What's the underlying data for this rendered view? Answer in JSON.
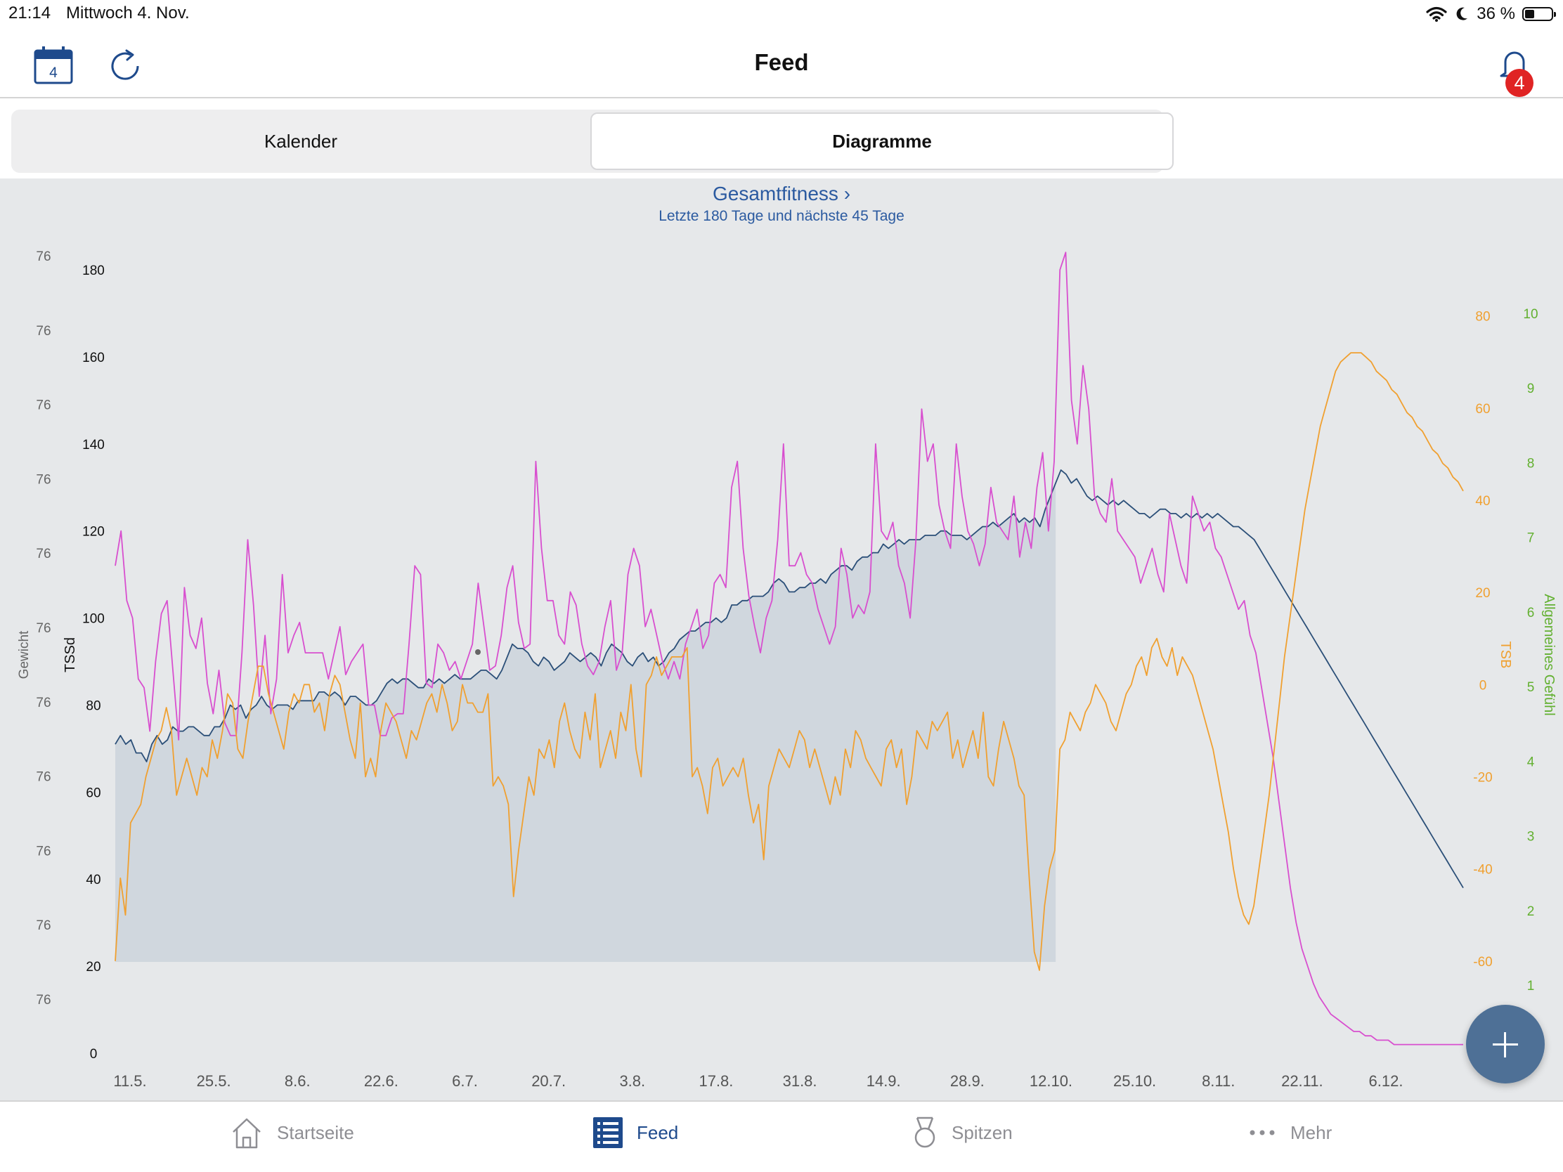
{
  "status_bar": {
    "time": "21:14",
    "date": "Mittwoch 4. Nov.",
    "battery": "36 %",
    "battery_level": 0.36
  },
  "nav": {
    "title": "Feed",
    "calendar_day": "4",
    "notification_count": "4"
  },
  "segments": {
    "left": "Kalender",
    "right": "Diagramme",
    "selected": "right"
  },
  "chart_header": {
    "title": "Gesamtfitness",
    "title_chevron": "›",
    "subtitle": "Letzte 180 Tage und nächste 45 Tage"
  },
  "chart_data": {
    "type": "line",
    "x_tick_labels": [
      "11.5.",
      "25.5.",
      "8.6.",
      "22.6.",
      "6.7.",
      "20.7.",
      "3.8.",
      "17.8.",
      "31.8.",
      "14.9.",
      "28.9.",
      "12.10.",
      "25.10.",
      "8.11.",
      "22.11.",
      "6.12."
    ],
    "axes": {
      "gewicht": {
        "label": "Gewicht",
        "tick_labels": [
          "76",
          "76",
          "76",
          "76",
          "76",
          "76",
          "76",
          "76",
          "76",
          "76",
          "76"
        ]
      },
      "tssd": {
        "label": "TSSd",
        "ticks": [
          0,
          20,
          40,
          60,
          80,
          100,
          120,
          140,
          160,
          180
        ],
        "range": [
          0,
          180
        ]
      },
      "tsb": {
        "label": "TSB",
        "ticks": [
          -60,
          -40,
          -20,
          0,
          20,
          40,
          60,
          80
        ],
        "range": [
          -80,
          90
        ],
        "color": "#f0a030"
      },
      "gefuehl": {
        "label": "Allgemeines Gefühl",
        "ticks": [
          1,
          2,
          3,
          4,
          5,
          6,
          7,
          8,
          9,
          10
        ],
        "color": "#62b030"
      }
    },
    "series": [
      {
        "axis": "tssd",
        "color": "#2b4f78",
        "fill": "#cbd3dc",
        "values": [
          71,
          73,
          71,
          72,
          69,
          69,
          67,
          71,
          73,
          71,
          72,
          75,
          74,
          74,
          75,
          75,
          74,
          73,
          73,
          75,
          75,
          77,
          80,
          79,
          80,
          77,
          79,
          80,
          82,
          80,
          79,
          80,
          80,
          80,
          79,
          81,
          81,
          81,
          81,
          83,
          83,
          82,
          83,
          82,
          80,
          82,
          82,
          81,
          80,
          80,
          81,
          83,
          85,
          86,
          85,
          86,
          86,
          85,
          84,
          84,
          86,
          85,
          86,
          85,
          86,
          87,
          86,
          86,
          86,
          87,
          88,
          88,
          87,
          86,
          88,
          91,
          94,
          93,
          93,
          92,
          90,
          89,
          91,
          90,
          88,
          89,
          90,
          92,
          91,
          90,
          91,
          92,
          91,
          89,
          92,
          94,
          93,
          92,
          90,
          89,
          91,
          92,
          90,
          91,
          89,
          90,
          92,
          93,
          95,
          96,
          97,
          97,
          98,
          99,
          99,
          100,
          99,
          100,
          103,
          103,
          104,
          104,
          105,
          105,
          105,
          106,
          108,
          109,
          108,
          106,
          106,
          107,
          107,
          108,
          108,
          109,
          108,
          110,
          111,
          112,
          112,
          111,
          113,
          114,
          114,
          115,
          115,
          117,
          116,
          117,
          118,
          117,
          118,
          118,
          118,
          119,
          119,
          119,
          120,
          120,
          119,
          119,
          119,
          118,
          119,
          120,
          121,
          121,
          122,
          121,
          122,
          123,
          124,
          122,
          123,
          122,
          123,
          121,
          125,
          128,
          131,
          134,
          133,
          131,
          132,
          130,
          128,
          127,
          128,
          127,
          126,
          127,
          126,
          127,
          126,
          125,
          124,
          124,
          123,
          124,
          125,
          125,
          124,
          124,
          123,
          124,
          123,
          124,
          123,
          124,
          123,
          124,
          123,
          122,
          121,
          121,
          120,
          119,
          118,
          116,
          114,
          112,
          110,
          108,
          106,
          104,
          102,
          100,
          98,
          96,
          94,
          92,
          90,
          88,
          86,
          84,
          82,
          80,
          78,
          76,
          74,
          72,
          70,
          68,
          66,
          64,
          62,
          60,
          58,
          56,
          54,
          52,
          50,
          48,
          46,
          44,
          42,
          40,
          38
        ]
      },
      {
        "axis": "tssd",
        "color": "#d84fcf",
        "values": [
          112,
          120,
          104,
          100,
          86,
          84,
          74,
          90,
          101,
          104,
          88,
          72,
          107,
          96,
          93,
          100,
          85,
          78,
          88,
          76,
          73,
          73,
          92,
          118,
          103,
          82,
          96,
          78,
          86,
          110,
          92,
          96,
          99,
          92,
          92,
          92,
          92,
          86,
          92,
          98,
          87,
          90,
          92,
          94,
          80,
          80,
          73,
          73,
          77,
          78,
          78,
          94,
          112,
          110,
          85,
          84,
          94,
          92,
          88,
          90,
          86,
          90,
          94,
          108,
          98,
          88,
          89,
          96,
          107,
          112,
          99,
          93,
          94,
          136,
          116,
          104,
          104,
          96,
          94,
          106,
          103,
          94,
          89,
          87,
          90,
          98,
          104,
          88,
          92,
          110,
          116,
          112,
          98,
          102,
          96,
          90,
          86,
          90,
          86,
          94,
          98,
          102,
          93,
          96,
          108,
          110,
          107,
          130,
          136,
          116,
          105,
          98,
          92,
          100,
          104,
          118,
          140,
          112,
          112,
          115,
          110,
          108,
          102,
          98,
          94,
          98,
          116,
          110,
          100,
          103,
          101,
          106,
          140,
          120,
          118,
          122,
          112,
          108,
          100,
          118,
          148,
          136,
          140,
          126,
          120,
          116,
          140,
          128,
          120,
          117,
          112,
          117,
          130,
          122,
          120,
          118,
          128,
          114,
          122,
          116,
          130,
          138,
          120,
          136,
          180,
          184,
          150,
          140,
          158,
          148,
          128,
          124,
          122,
          132,
          120,
          118,
          116,
          114,
          108,
          112,
          116,
          110,
          106,
          124,
          118,
          112,
          108,
          128,
          124,
          120,
          122,
          116,
          114,
          110,
          106,
          102,
          104,
          96,
          92,
          84,
          76,
          68,
          58,
          48,
          38,
          30,
          24,
          20,
          16,
          13,
          11,
          9,
          8,
          7,
          6,
          5,
          5,
          4,
          4,
          3,
          3,
          3,
          2,
          2,
          2,
          2,
          2,
          2,
          2,
          2,
          2,
          2,
          2,
          2,
          2
        ]
      },
      {
        "axis": "tsb",
        "color": "#f0a030",
        "values": [
          -60,
          -42,
          -50,
          -30,
          -28,
          -26,
          -20,
          -16,
          -12,
          -10,
          -5,
          -10,
          -24,
          -20,
          -16,
          -20,
          -24,
          -18,
          -20,
          -12,
          -16,
          -10,
          -2,
          -4,
          -14,
          -16,
          -8,
          -2,
          4,
          4,
          -2,
          -6,
          -10,
          -14,
          -6,
          -2,
          -4,
          0,
          0,
          -6,
          -4,
          -10,
          -2,
          2,
          0,
          -6,
          -12,
          -16,
          -4,
          -20,
          -16,
          -20,
          -10,
          -4,
          -6,
          -8,
          -12,
          -16,
          -10,
          -12,
          -8,
          -4,
          -2,
          -6,
          0,
          -4,
          -10,
          -8,
          0,
          -4,
          -4,
          -6,
          -6,
          -2,
          -22,
          -20,
          -22,
          -26,
          -46,
          -36,
          -28,
          -20,
          -24,
          -14,
          -16,
          -12,
          -18,
          -8,
          -4,
          -10,
          -14,
          -16,
          -6,
          -12,
          -2,
          -18,
          -14,
          -10,
          -16,
          -6,
          -10,
          0,
          -14,
          -20,
          0,
          2,
          6,
          2,
          4,
          6,
          6,
          6,
          8,
          -20,
          -18,
          -22,
          -28,
          -18,
          -16,
          -22,
          -20,
          -18,
          -20,
          -16,
          -24,
          -30,
          -26,
          -38,
          -22,
          -18,
          -14,
          -16,
          -18,
          -14,
          -10,
          -12,
          -18,
          -14,
          -18,
          -22,
          -26,
          -20,
          -24,
          -14,
          -18,
          -10,
          -12,
          -16,
          -18,
          -20,
          -22,
          -14,
          -12,
          -18,
          -14,
          -26,
          -20,
          -10,
          -12,
          -14,
          -8,
          -10,
          -8,
          -6,
          -16,
          -12,
          -18,
          -14,
          -10,
          -16,
          -6,
          -20,
          -22,
          -14,
          -8,
          -12,
          -16,
          -22,
          -24,
          -42,
          -58,
          -62,
          -48,
          -40,
          -36,
          -14,
          -12,
          -6,
          -8,
          -10,
          -6,
          -4,
          0,
          -2,
          -4,
          -8,
          -10,
          -6,
          -2,
          0,
          4,
          6,
          2,
          8,
          10,
          6,
          4,
          8,
          2,
          6,
          4,
          2,
          -2,
          -6,
          -10,
          -14,
          -20,
          -26,
          -32,
          -40,
          -46,
          -50,
          -52,
          -48,
          -40,
          -32,
          -24,
          -14,
          -4,
          6,
          14,
          22,
          30,
          38,
          44,
          50,
          56,
          60,
          64,
          68,
          70,
          71,
          72,
          72,
          72,
          71,
          70,
          68,
          67,
          66,
          64,
          63,
          61,
          59,
          58,
          56,
          55,
          53,
          51,
          50,
          48,
          47,
          45,
          44,
          42
        ]
      }
    ]
  },
  "tabs": [
    {
      "label": "Startseite",
      "icon": "home-icon"
    },
    {
      "label": "Feed",
      "icon": "feed-list-icon",
      "active": true
    },
    {
      "label": "Spitzen",
      "icon": "medal-icon"
    },
    {
      "label": "Mehr",
      "icon": "more-dots-icon"
    }
  ],
  "fab": {
    "icon": "plus-icon"
  }
}
